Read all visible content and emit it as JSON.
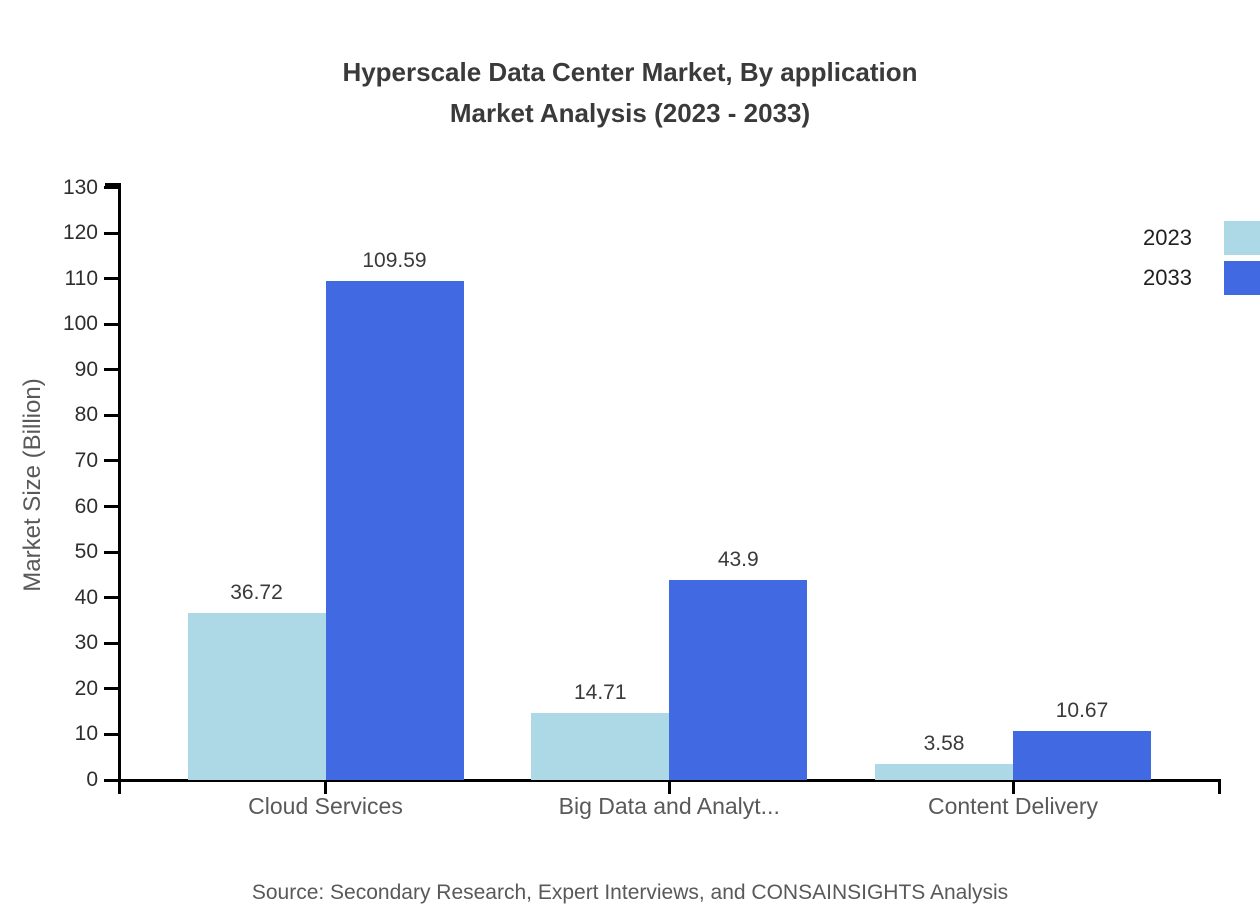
{
  "title": {
    "line1": "Hyperscale Data Center Market, By application",
    "line2": "Market Analysis (2023 - 2033)"
  },
  "source": {
    "text": "Source: Secondary Research, Expert Interviews, and CONSAINSIGHTS Analysis"
  },
  "chart_data": {
    "type": "bar",
    "title": "Hyperscale Data Center Market, By application Market Analysis (2023 - 2033)",
    "categories": [
      "Cloud Services",
      "Big Data and Analyt...",
      "Content Delivery"
    ],
    "series": [
      {
        "name": "2023",
        "color": "#ADD8E6",
        "values": [
          36.72,
          14.71,
          3.58
        ]
      },
      {
        "name": "2033",
        "color": "#4169E1",
        "values": [
          109.59,
          43.9,
          10.67
        ]
      }
    ],
    "xlabel": "",
    "ylabel": "Market Size (Billion)",
    "ylim": [
      0,
      130
    ],
    "yticks": [
      0,
      10,
      20,
      30,
      40,
      50,
      60,
      70,
      80,
      90,
      100,
      110,
      120,
      130
    ],
    "grid": false,
    "legend_position": "top-right",
    "bar_value_labels": true
  },
  "colors": {
    "series_2023": "#ADD8E6",
    "series_2033": "#4169E1",
    "axis": "#000000",
    "title_text": "#3a3a3a",
    "tick_text": "#2e2e2e",
    "category_text": "#595959",
    "value_text": "#3a3a3a",
    "muted_text": "#595959"
  }
}
